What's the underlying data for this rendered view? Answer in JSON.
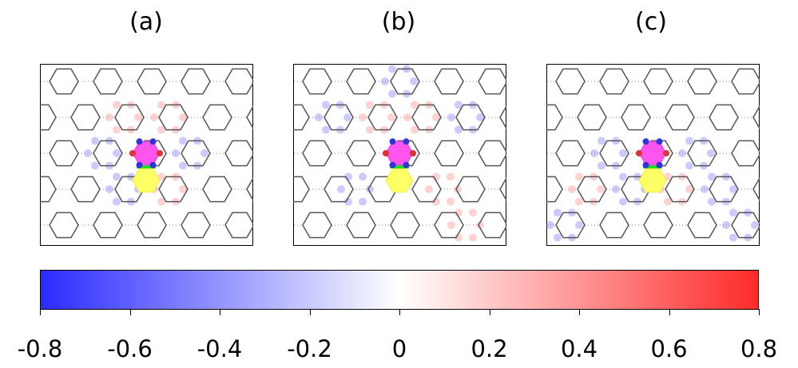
{
  "panels": [
    {
      "label": "(a)",
      "pattern": "a"
    },
    {
      "label": "(b)",
      "pattern": "b"
    },
    {
      "label": "(c)",
      "pattern": "c"
    }
  ],
  "colorbar": {
    "min": -0.8,
    "max": 0.8,
    "colors": {
      "negative": "#2a2aff",
      "zero": "#ffffff",
      "positive": "#ff2a2a"
    },
    "ticks": [
      "-0.8",
      "-0.6",
      "-0.4",
      "-0.2",
      "0",
      "0.2",
      "0.4",
      "0.6",
      "0.8"
    ]
  },
  "colors": {
    "lattice": "#555555",
    "magenta_ring": "#ff55ee",
    "yellow_ring": "#ffff66",
    "bond_green": "#22dd22",
    "atom_blue": "#3333dd",
    "atom_red": "#dd3333"
  }
}
